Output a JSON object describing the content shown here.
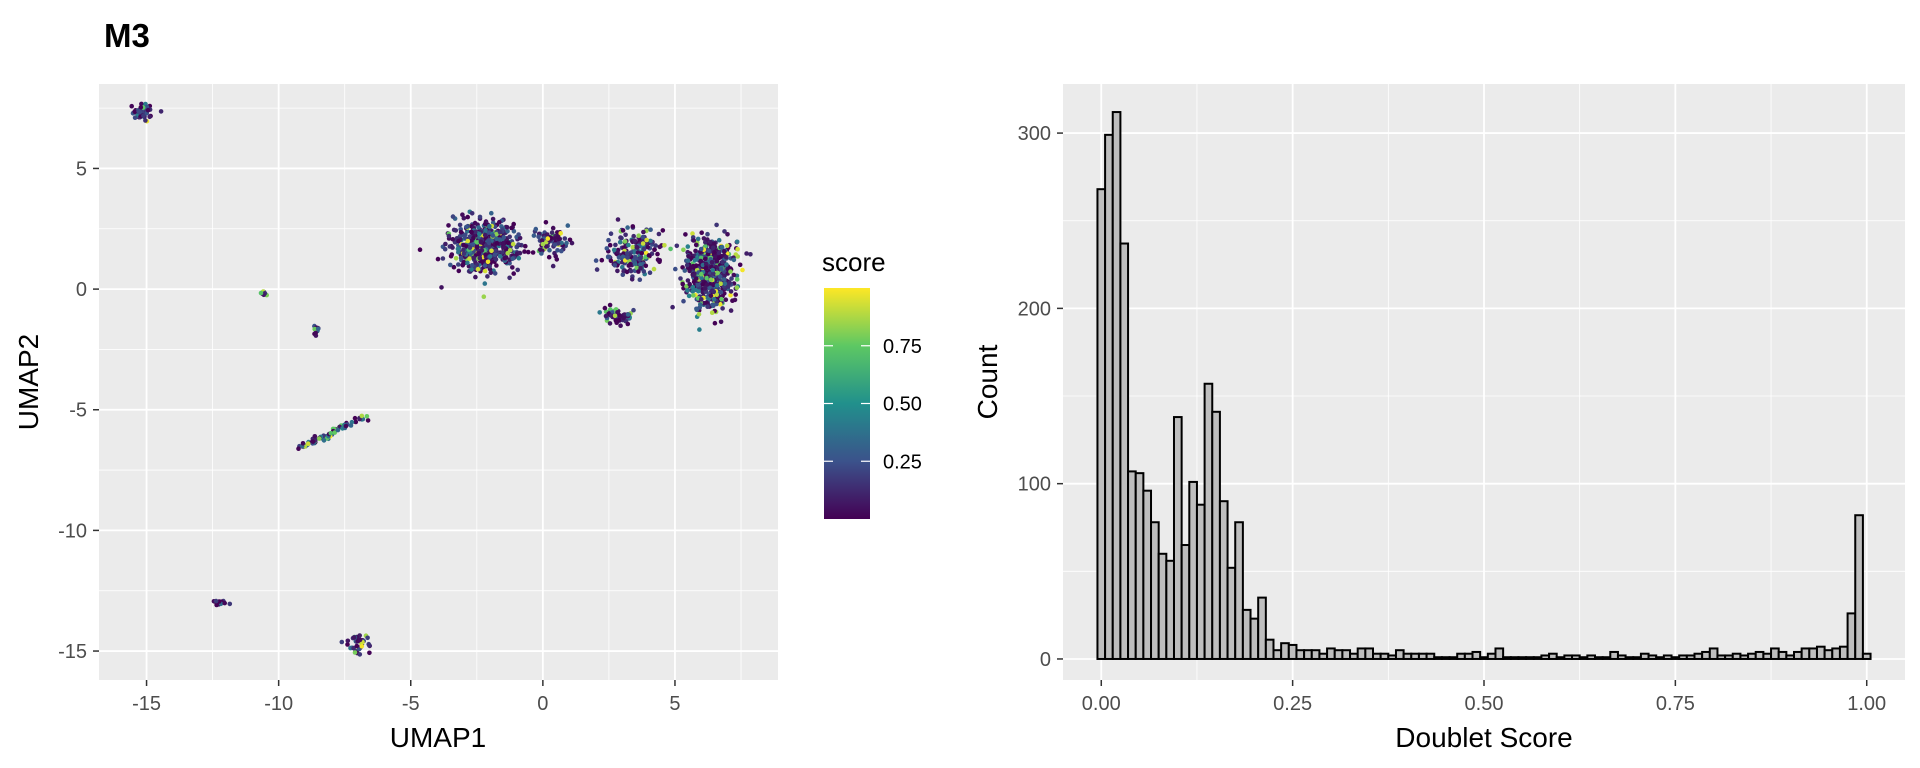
{
  "title": "M3",
  "chart_data": [
    {
      "type": "scatter",
      "xlabel": "UMAP1",
      "ylabel": "UMAP2",
      "xlim": [
        -16.8,
        8.9
      ],
      "ylim": [
        -16.2,
        8.5
      ],
      "x_ticks": [
        -15,
        -10,
        -5,
        0,
        5
      ],
      "x_tick_labels": [
        "-15",
        "-10",
        "-5",
        "0",
        "5"
      ],
      "y_ticks": [
        5,
        0,
        -5,
        -10,
        -15
      ],
      "y_tick_labels": [
        "5",
        "0",
        "-5",
        "-10",
        "-15"
      ],
      "grid": true,
      "color_scale": {
        "title": "score",
        "palette": "viridis",
        "colors": [
          "#440154",
          "#3b528b",
          "#21908c",
          "#5dc863",
          "#fde725"
        ],
        "range": [
          0,
          1
        ],
        "tick_values": [
          0.75,
          0.5,
          0.25
        ],
        "tick_labels": [
          "0.75",
          "0.50",
          "0.25"
        ]
      },
      "clusters": [
        {
          "center": [
            -15.2,
            7.3
          ],
          "spread": [
            0.35,
            0.3
          ],
          "count": 60,
          "high_score_fraction": 0.05
        },
        {
          "center": [
            -10.6,
            -0.2
          ],
          "spread": [
            0.15,
            0.08
          ],
          "count": 10,
          "high_score_fraction": 0.2
        },
        {
          "center": [
            -8.6,
            -1.7
          ],
          "spread": [
            0.1,
            0.25
          ],
          "count": 12,
          "high_score_fraction": 0.1
        },
        {
          "center": [
            -12.2,
            -13.0
          ],
          "spread": [
            0.35,
            0.1
          ],
          "count": 15,
          "high_score_fraction": 0.0
        },
        {
          "center": [
            -7.0,
            -14.7
          ],
          "spread": [
            0.45,
            0.35
          ],
          "count": 40,
          "high_score_fraction": 0.15
        },
        {
          "center": [
            -2.2,
            1.8
          ],
          "spread": [
            1.1,
            0.9
          ],
          "count": 650,
          "high_score_fraction": 0.08
        },
        {
          "center": [
            0.3,
            2.0
          ],
          "spread": [
            0.5,
            0.6
          ],
          "count": 80,
          "high_score_fraction": 0.15
        },
        {
          "center": [
            3.5,
            1.5
          ],
          "spread": [
            0.9,
            0.9
          ],
          "count": 220,
          "high_score_fraction": 0.15
        },
        {
          "center": [
            2.8,
            -1.1
          ],
          "spread": [
            0.45,
            0.35
          ],
          "count": 60,
          "high_score_fraction": 0.1
        },
        {
          "center": [
            6.3,
            0.6
          ],
          "spread": [
            0.85,
            1.3
          ],
          "count": 600,
          "high_score_fraction": 0.15
        }
      ],
      "streaks": [
        {
          "from": [
            -9.3,
            -6.6
          ],
          "to": [
            -6.7,
            -5.3
          ],
          "count": 70,
          "high_score_fraction": 0.25
        }
      ]
    },
    {
      "type": "bar",
      "subtype": "histogram",
      "xlabel": "Doublet Score",
      "ylabel": "Count",
      "bin_start": 0.0,
      "bin_width": 0.01,
      "values": [
        268,
        299,
        312,
        237,
        107,
        106,
        96,
        78,
        60,
        56,
        138,
        65,
        101,
        88,
        157,
        141,
        90,
        52,
        78,
        28,
        23,
        35,
        11,
        5,
        9,
        8,
        5,
        5,
        5,
        3,
        6,
        5,
        5,
        3,
        6,
        6,
        3,
        3,
        2,
        5,
        3,
        3,
        3,
        3,
        1,
        1,
        1,
        3,
        3,
        4,
        1,
        3,
        6,
        1,
        1,
        1,
        1,
        1,
        2,
        3,
        1,
        2,
        2,
        1,
        2,
        1,
        1,
        4,
        2,
        1,
        1,
        3,
        2,
        1,
        2,
        1,
        2,
        2,
        3,
        4,
        6,
        2,
        2,
        3,
        2,
        3,
        4,
        3,
        6,
        4,
        2,
        4,
        6,
        6,
        7,
        5,
        6,
        7,
        26,
        82,
        3
      ],
      "xlim": [
        -0.05,
        1.05
      ],
      "ylim": [
        -12,
        328
      ],
      "x_ticks": [
        0,
        0.25,
        0.5,
        0.75,
        1.0
      ],
      "x_tick_labels": [
        "0.00",
        "0.25",
        "0.50",
        "0.75",
        "1.00"
      ],
      "y_ticks": [
        0,
        100,
        200,
        300
      ],
      "y_tick_labels": [
        "0",
        "100",
        "200",
        "300"
      ],
      "grid": true,
      "bar_fill": "#bebebe",
      "bar_outline": "#000000"
    }
  ],
  "colors": {
    "panel_bg": "#ebebeb",
    "grid": "#ffffff",
    "tick_text": "#4d4d4d",
    "axis_title": "#000000"
  }
}
